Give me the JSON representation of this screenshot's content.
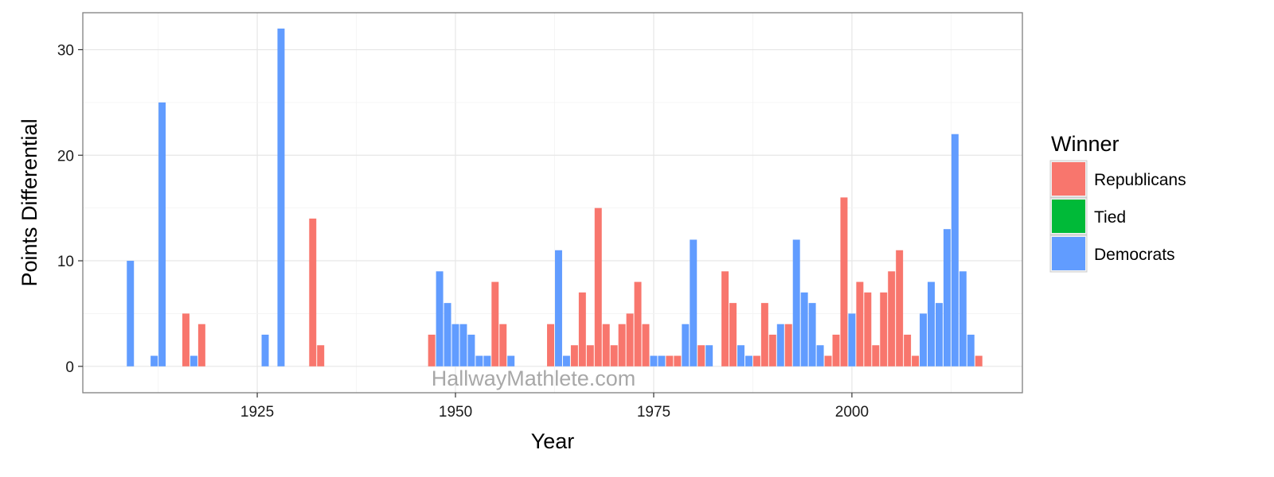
{
  "watermark": "HallwayMathlete.com",
  "chart_data": {
    "type": "bar",
    "xlabel": "Year",
    "ylabel": "Points Differential",
    "xlim": [
      1903,
      2021.5
    ],
    "ylim": [
      -2.5,
      33.5
    ],
    "x_ticks": [
      1925,
      1950,
      1975,
      2000
    ],
    "y_ticks": [
      0,
      10,
      20,
      30
    ],
    "grid": true,
    "legend": {
      "title": "Winner",
      "position": "right",
      "entries": [
        {
          "name": "Republicans",
          "color": "#F8766D"
        },
        {
          "name": "Tied",
          "color": "#00BA38"
        },
        {
          "name": "Democrats",
          "color": "#619CFF"
        }
      ]
    },
    "series": [
      {
        "name": "Republicans",
        "color": "#F8766D",
        "points": [
          [
            1916,
            5
          ],
          [
            1918,
            4
          ],
          [
            1932,
            14
          ],
          [
            1933,
            2
          ],
          [
            1947,
            3
          ],
          [
            1955,
            8
          ],
          [
            1956,
            4
          ],
          [
            1962,
            4
          ],
          [
            1965,
            2
          ],
          [
            1966,
            7
          ],
          [
            1967,
            2
          ],
          [
            1968,
            15
          ],
          [
            1969,
            4
          ],
          [
            1970,
            2
          ],
          [
            1971,
            4
          ],
          [
            1972,
            5
          ],
          [
            1973,
            8
          ],
          [
            1974,
            4
          ],
          [
            1977,
            1
          ],
          [
            1978,
            1
          ],
          [
            1981,
            2
          ],
          [
            1984,
            9
          ],
          [
            1985,
            6
          ],
          [
            1988,
            1
          ],
          [
            1989,
            6
          ],
          [
            1990,
            3
          ],
          [
            1992,
            4
          ],
          [
            1997,
            1
          ],
          [
            1998,
            3
          ],
          [
            1999,
            16
          ],
          [
            2001,
            8
          ],
          [
            2002,
            7
          ],
          [
            2003,
            2
          ],
          [
            2004,
            7
          ],
          [
            2005,
            9
          ],
          [
            2006,
            11
          ],
          [
            2007,
            3
          ],
          [
            2008,
            1
          ],
          [
            2016,
            1
          ]
        ]
      },
      {
        "name": "Democrats",
        "color": "#619CFF",
        "points": [
          [
            1909,
            10
          ],
          [
            1912,
            1
          ],
          [
            1913,
            25
          ],
          [
            1917,
            1
          ],
          [
            1926,
            3
          ],
          [
            1928,
            32
          ],
          [
            1948,
            9
          ],
          [
            1949,
            6
          ],
          [
            1950,
            4
          ],
          [
            1951,
            4
          ],
          [
            1952,
            3
          ],
          [
            1953,
            1
          ],
          [
            1954,
            1
          ],
          [
            1957,
            1
          ],
          [
            1963,
            11
          ],
          [
            1964,
            1
          ],
          [
            1975,
            1
          ],
          [
            1976,
            1
          ],
          [
            1979,
            4
          ],
          [
            1980,
            12
          ],
          [
            1982,
            2
          ],
          [
            1986,
            2
          ],
          [
            1987,
            1
          ],
          [
            1991,
            4
          ],
          [
            1993,
            12
          ],
          [
            1994,
            7
          ],
          [
            1995,
            6
          ],
          [
            1996,
            2
          ],
          [
            2000,
            5
          ],
          [
            2009,
            5
          ],
          [
            2010,
            8
          ],
          [
            2011,
            6
          ],
          [
            2012,
            13
          ],
          [
            2013,
            22
          ],
          [
            2014,
            9
          ],
          [
            2015,
            3
          ]
        ]
      }
    ]
  }
}
